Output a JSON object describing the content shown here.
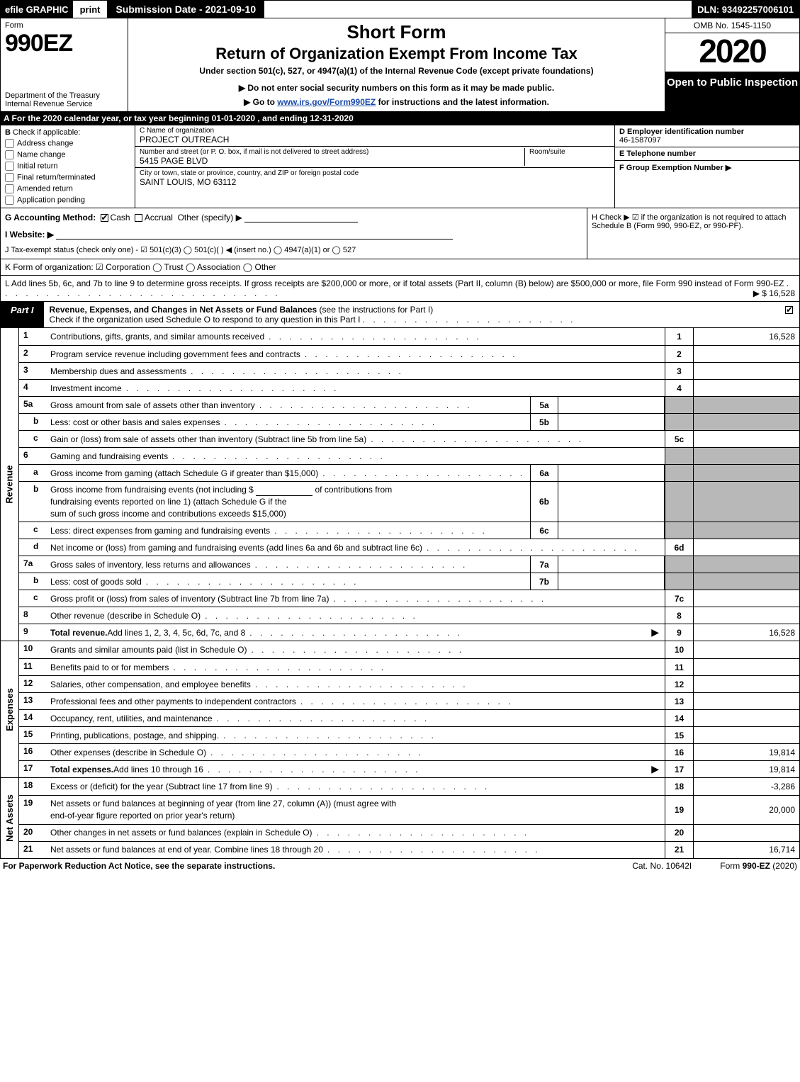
{
  "topbar": {
    "efile": "efile GRAPHIC",
    "print": "print",
    "submission_date": "Submission Date - 2021-09-10",
    "dln": "DLN: 93492257006101"
  },
  "header": {
    "form_label": "Form",
    "form_number": "990EZ",
    "dept1": "Department of the Treasury",
    "dept2": "Internal Revenue Service",
    "short_form": "Short Form",
    "return_of": "Return of Organization Exempt From Income Tax",
    "under_section": "Under section 501(c), 527, or 4947(a)(1) of the Internal Revenue Code (except private foundations)",
    "do_not_enter": "▶ Do not enter social security numbers on this form as it may be made public.",
    "go_to": "▶ Go to ",
    "go_to_link": "www.irs.gov/Form990EZ",
    "go_to_rest": " for instructions and the latest information.",
    "omb": "OMB No. 1545-1150",
    "year": "2020",
    "open_to": "Open to Public Inspection"
  },
  "row_a": "A  For the 2020 calendar year, or tax year beginning 01-01-2020 , and ending 12-31-2020",
  "section_b": {
    "head": "B",
    "check_if": "Check if applicable:",
    "items": [
      "Address change",
      "Name change",
      "Initial return",
      "Final return/terminated",
      "Amended return",
      "Application pending"
    ]
  },
  "section_c": {
    "name_label": "C Name of organization",
    "name_value": "PROJECT OUTREACH",
    "street_label": "Number and street (or P. O. box, if mail is not delivered to street address)",
    "street_value": "5415 PAGE BLVD",
    "room_label": "Room/suite",
    "city_label": "City or town, state or province, country, and ZIP or foreign postal code",
    "city_value": "SAINT LOUIS, MO  63112"
  },
  "section_d": {
    "d_label": "D Employer identification number",
    "d_value": "46-1587097",
    "e_label": "E Telephone number",
    "f_label": "F Group Exemption Number  ▶"
  },
  "row_g": {
    "label": "G Accounting Method:",
    "cash": "Cash",
    "accrual": "Accrual",
    "other": "Other (specify) ▶"
  },
  "row_h": "H  Check ▶ ☑ if the organization is not required to attach Schedule B (Form 990, 990-EZ, or 990-PF).",
  "row_i": "I Website: ▶",
  "row_j": "J Tax-exempt status (check only one) - ☑ 501(c)(3)  ◯ 501(c)(  ) ◀ (insert no.)  ◯ 4947(a)(1) or  ◯ 527",
  "row_k": "K Form of organization:  ☑ Corporation  ◯ Trust  ◯ Association  ◯ Other",
  "row_l": {
    "text": "L Add lines 5b, 6c, and 7b to line 9 to determine gross receipts. If gross receipts are $200,000 or more, or if total assets (Part II, column (B) below) are $500,000 or more, file Form 990 instead of Form 990-EZ",
    "amount": "▶ $ 16,528"
  },
  "part1": {
    "tag": "Part I",
    "title_bold": "Revenue, Expenses, and Changes in Net Assets or Fund Balances",
    "title_rest": " (see the instructions for Part I)",
    "check_line": "Check if the organization used Schedule O to respond to any question in this Part I"
  },
  "revenue_rows": [
    {
      "ln": "1",
      "desc": "Contributions, gifts, grants, and similar amounts received",
      "no": "1",
      "val": "16,528"
    },
    {
      "ln": "2",
      "desc": "Program service revenue including government fees and contracts",
      "no": "2",
      "val": ""
    },
    {
      "ln": "3",
      "desc": "Membership dues and assessments",
      "no": "3",
      "val": ""
    },
    {
      "ln": "4",
      "desc": "Investment income",
      "no": "4",
      "val": ""
    },
    {
      "ln": "5a",
      "desc": "Gross amount from sale of assets other than inventory",
      "sub_no": "5a",
      "grey_after": true
    },
    {
      "ln": "b",
      "desc": "Less: cost or other basis and sales expenses",
      "sub_no": "5b",
      "grey_after": true
    },
    {
      "ln": "c",
      "desc": "Gain or (loss) from sale of assets other than inventory (Subtract line 5b from line 5a)",
      "no": "5c",
      "val": ""
    },
    {
      "ln": "6",
      "desc": "Gaming and fundraising events",
      "grey_no": true,
      "grey_val": true
    },
    {
      "ln": "a",
      "desc": "Gross income from gaming (attach Schedule G if greater than $15,000)",
      "sub_no": "6a",
      "grey_after": true
    },
    {
      "ln": "b",
      "desc_multi": [
        "Gross income from fundraising events (not including $ ______________ of contributions from",
        "fundraising events reported on line 1) (attach Schedule G if the",
        "sum of such gross income and contributions exceeds $15,000)"
      ],
      "sub_no": "6b",
      "grey_after": true
    },
    {
      "ln": "c",
      "desc": "Less: direct expenses from gaming and fundraising events",
      "sub_no": "6c",
      "grey_after": true
    },
    {
      "ln": "d",
      "desc": "Net income or (loss) from gaming and fundraising events (add lines 6a and 6b and subtract line 6c)",
      "no": "6d",
      "val": ""
    },
    {
      "ln": "7a",
      "desc": "Gross sales of inventory, less returns and allowances",
      "sub_no": "7a",
      "grey_after": true
    },
    {
      "ln": "b",
      "desc": "Less: cost of goods sold",
      "sub_no": "7b",
      "grey_after": true
    },
    {
      "ln": "c",
      "desc": "Gross profit or (loss) from sales of inventory (Subtract line 7b from line 7a)",
      "no": "7c",
      "val": ""
    },
    {
      "ln": "8",
      "desc": "Other revenue (describe in Schedule O)",
      "no": "8",
      "val": ""
    },
    {
      "ln": "9",
      "desc_bold": "Total revenue.",
      "desc": " Add lines 1, 2, 3, 4, 5c, 6d, 7c, and 8",
      "no": "9",
      "val": "16,528",
      "arrow": true
    }
  ],
  "expense_rows": [
    {
      "ln": "10",
      "desc": "Grants and similar amounts paid (list in Schedule O)",
      "no": "10",
      "val": ""
    },
    {
      "ln": "11",
      "desc": "Benefits paid to or for members",
      "no": "11",
      "val": ""
    },
    {
      "ln": "12",
      "desc": "Salaries, other compensation, and employee benefits",
      "no": "12",
      "val": ""
    },
    {
      "ln": "13",
      "desc": "Professional fees and other payments to independent contractors",
      "no": "13",
      "val": ""
    },
    {
      "ln": "14",
      "desc": "Occupancy, rent, utilities, and maintenance",
      "no": "14",
      "val": ""
    },
    {
      "ln": "15",
      "desc": "Printing, publications, postage, and shipping.",
      "no": "15",
      "val": ""
    },
    {
      "ln": "16",
      "desc": "Other expenses (describe in Schedule O)",
      "no": "16",
      "val": "19,814"
    },
    {
      "ln": "17",
      "desc_bold": "Total expenses.",
      "desc": " Add lines 10 through 16",
      "no": "17",
      "val": "19,814",
      "arrow": true
    }
  ],
  "netasset_rows": [
    {
      "ln": "18",
      "desc": "Excess or (deficit) for the year (Subtract line 17 from line 9)",
      "no": "18",
      "val": "-3,286"
    },
    {
      "ln": "19",
      "desc_multi": [
        "Net assets or fund balances at beginning of year (from line 27, column (A)) (must agree with",
        "end-of-year figure reported on prior year's return)"
      ],
      "no": "19",
      "val": "20,000",
      "grey_first_no": true
    },
    {
      "ln": "20",
      "desc": "Other changes in net assets or fund balances (explain in Schedule O)",
      "no": "20",
      "val": ""
    },
    {
      "ln": "21",
      "desc": "Net assets or fund balances at end of year. Combine lines 18 through 20",
      "no": "21",
      "val": "16,714"
    }
  ],
  "side_labels": {
    "revenue": "Revenue",
    "expenses": "Expenses",
    "netassets": "Net Assets"
  },
  "footer": {
    "left": "For Paperwork Reduction Act Notice, see the separate instructions.",
    "center": "Cat. No. 10642I",
    "right_pre": "Form ",
    "right_bold": "990-EZ",
    "right_post": " (2020)"
  },
  "colors": {
    "black": "#000000",
    "white": "#ffffff",
    "grey_fill": "#b8b8b8",
    "link": "#1a4aa8"
  }
}
